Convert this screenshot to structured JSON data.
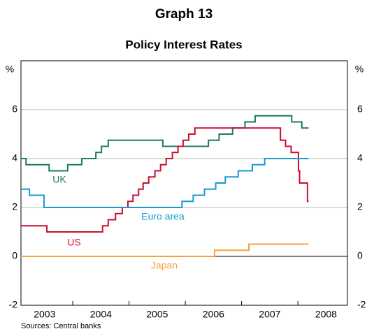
{
  "chart_data": {
    "type": "step-line",
    "title": "Graph 13",
    "subtitle": "Policy Interest Rates",
    "y_unit_left": "%",
    "y_unit_right": "%",
    "source": "Sources: Central banks",
    "xlim": [
      2003.08,
      2008.88
    ],
    "xticks": [
      {
        "value": 2003.5,
        "label": "2003"
      },
      {
        "value": 2004.5,
        "label": "2004"
      },
      {
        "value": 2005.5,
        "label": "2005"
      },
      {
        "value": 2006.5,
        "label": "2006"
      },
      {
        "value": 2007.5,
        "label": "2007"
      },
      {
        "value": 2008.5,
        "label": "2008"
      }
    ],
    "x_boundary_ticks": [
      2004,
      2005,
      2006,
      2007,
      2008
    ],
    "ylim": [
      -2,
      8
    ],
    "yticks": [
      -2,
      0,
      2,
      4,
      6
    ],
    "grid": true,
    "series": [
      {
        "name": "UK",
        "color": "#1d7a5c",
        "x": [
          2003.08,
          2003.17,
          2003.58,
          2003.91,
          2004.16,
          2004.41,
          2004.51,
          2004.63,
          2005.6,
          2006.41,
          2006.6,
          2006.84,
          2007.06,
          2007.24,
          2007.89,
          2008.07,
          2008.19
        ],
        "values": [
          4.0,
          3.75,
          3.5,
          3.75,
          4.0,
          4.25,
          4.5,
          4.75,
          4.5,
          4.75,
          5.0,
          5.25,
          5.5,
          5.75,
          5.5,
          5.25,
          5.25
        ]
      },
      {
        "name": "US",
        "color": "#c8102e",
        "x": [
          2003.08,
          2003.54,
          2004.53,
          2004.63,
          2004.76,
          2004.88,
          2004.98,
          2005.07,
          2005.17,
          2005.25,
          2005.35,
          2005.46,
          2005.56,
          2005.66,
          2005.77,
          2005.87,
          2005.96,
          2006.06,
          2006.17,
          2007.69,
          2007.78,
          2007.88,
          2008.01,
          2008.03,
          2008.17,
          2008.19
        ],
        "values": [
          1.25,
          1.0,
          1.25,
          1.5,
          1.75,
          2.0,
          2.25,
          2.5,
          2.75,
          3.0,
          3.25,
          3.5,
          3.75,
          4.0,
          4.25,
          4.5,
          4.75,
          5.0,
          5.25,
          4.75,
          4.5,
          4.25,
          3.5,
          3.0,
          2.25,
          2.25
        ]
      },
      {
        "name": "Euro area",
        "color": "#1a9ad0",
        "x": [
          2003.08,
          2003.23,
          2003.49,
          2005.94,
          2006.14,
          2006.34,
          2006.54,
          2006.71,
          2006.94,
          2007.19,
          2007.41,
          2008.19
        ],
        "values": [
          2.75,
          2.5,
          2.0,
          2.25,
          2.5,
          2.75,
          3.0,
          3.25,
          3.5,
          3.75,
          4.0,
          4.0
        ]
      },
      {
        "name": "Japan",
        "color": "#f5a340",
        "x": [
          2003.08,
          2006.52,
          2007.13,
          2008.19
        ],
        "values": [
          0.0,
          0.25,
          0.5,
          0.5
        ]
      }
    ]
  }
}
